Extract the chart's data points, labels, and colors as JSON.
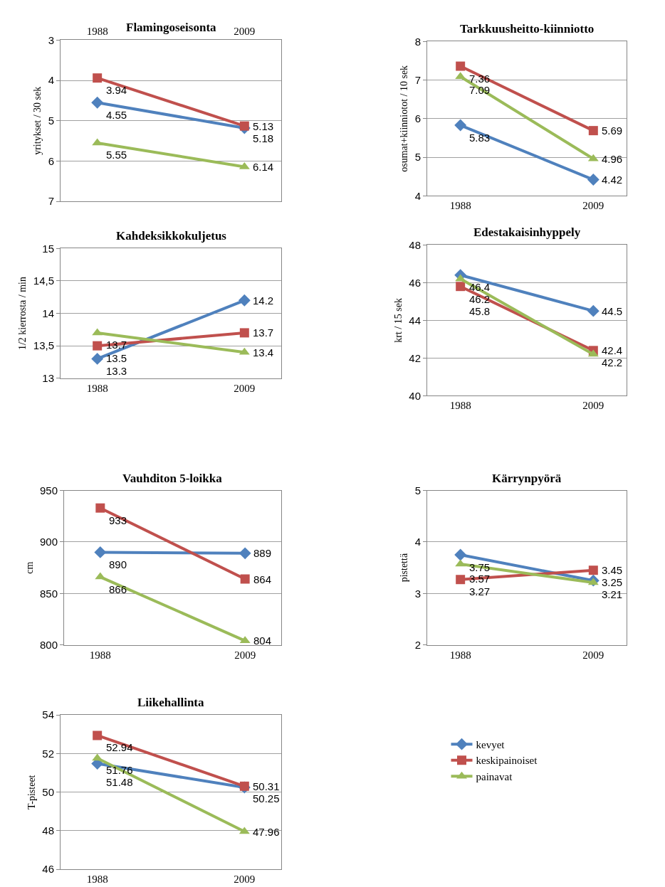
{
  "chart_data": [
    {
      "type": "line",
      "title": "Flamingoseisonta",
      "ylabel": "yritykset / 30 sek",
      "categories": [
        "1988",
        "2009"
      ],
      "ylim": [
        7,
        3
      ],
      "yticks": [
        3,
        4,
        5,
        6,
        7
      ],
      "grid": "y",
      "data_labels": true,
      "series": [
        {
          "color": "#4f81bd",
          "marker": "diamond",
          "values": [
            4.55,
            5.18
          ]
        },
        {
          "color": "#c0504d",
          "marker": "square",
          "values": [
            3.94,
            5.13
          ]
        },
        {
          "color": "#9bbb59",
          "marker": "triangle",
          "values": [
            5.55,
            6.14
          ]
        }
      ]
    },
    {
      "type": "line",
      "title": "Tarkkuusheitto-kiinniotto",
      "ylabel": "osumat+kiinniotot / 10 sek",
      "categories": [
        "1988",
        "2009"
      ],
      "ylim": [
        4,
        8
      ],
      "yticks": [
        4,
        5,
        6,
        7,
        8
      ],
      "grid": "y",
      "data_labels": true,
      "series": [
        {
          "color": "#4f81bd",
          "marker": "diamond",
          "values": [
            5.83,
            4.42
          ]
        },
        {
          "color": "#c0504d",
          "marker": "square",
          "values": [
            7.36,
            5.69
          ]
        },
        {
          "color": "#9bbb59",
          "marker": "triangle",
          "values": [
            7.09,
            4.96
          ]
        }
      ]
    },
    {
      "type": "line",
      "title": "Kahdeksikkokuljetus",
      "ylabel": "1/2 kierrosta / min",
      "categories": [
        "1988",
        "2009"
      ],
      "ylim": [
        13,
        15
      ],
      "yticks": [
        13,
        {
          "value": 13.5,
          "label": "13,5"
        },
        14,
        {
          "value": 14.5,
          "label": "14,5"
        },
        15
      ],
      "grid": "y",
      "data_labels": true,
      "series": [
        {
          "color": "#4f81bd",
          "marker": "diamond",
          "values": [
            13.3,
            14.2
          ]
        },
        {
          "color": "#c0504d",
          "marker": "square",
          "values": [
            13.5,
            13.7
          ]
        },
        {
          "color": "#9bbb59",
          "marker": "triangle",
          "values": [
            13.7,
            13.4
          ]
        }
      ]
    },
    {
      "type": "line",
      "title": "Edestakaisinhyppely",
      "ylabel": "krt / 15 sek",
      "categories": [
        "1988",
        "2009"
      ],
      "ylim": [
        40,
        48
      ],
      "yticks": [
        40,
        42,
        44,
        46,
        48
      ],
      "grid": "y",
      "data_labels": true,
      "series": [
        {
          "color": "#4f81bd",
          "marker": "diamond",
          "values": [
            46.4,
            44.5
          ]
        },
        {
          "color": "#c0504d",
          "marker": "square",
          "values": [
            45.8,
            42.4
          ]
        },
        {
          "color": "#9bbb59",
          "marker": "triangle",
          "values": [
            46.2,
            42.2
          ]
        }
      ]
    },
    {
      "type": "line",
      "title": "Vauhditon 5-loikka",
      "ylabel": "cm",
      "categories": [
        "1988",
        "2009"
      ],
      "ylim": [
        800,
        950
      ],
      "yticks": [
        800,
        850,
        900,
        950
      ],
      "grid": "y",
      "data_labels": true,
      "series": [
        {
          "color": "#4f81bd",
          "marker": "diamond",
          "values": [
            890,
            889
          ]
        },
        {
          "color": "#c0504d",
          "marker": "square",
          "values": [
            933,
            864
          ]
        },
        {
          "color": "#9bbb59",
          "marker": "triangle",
          "values": [
            866,
            804
          ]
        }
      ]
    },
    {
      "type": "line",
      "title": "Kärrynpyörä",
      "ylabel": "pistettä",
      "categories": [
        "1988",
        "2009"
      ],
      "ylim": [
        2,
        5
      ],
      "yticks": [
        2,
        3,
        4,
        5
      ],
      "grid": "y",
      "data_labels": true,
      "series": [
        {
          "color": "#4f81bd",
          "marker": "diamond",
          "values": [
            3.75,
            3.25
          ]
        },
        {
          "color": "#c0504d",
          "marker": "square",
          "values": [
            3.27,
            3.45
          ]
        },
        {
          "color": "#9bbb59",
          "marker": "triangle",
          "values": [
            3.57,
            3.21
          ]
        }
      ]
    },
    {
      "type": "line",
      "title": "Liikehallinta",
      "ylabel": "T-pisteet",
      "categories": [
        "1988",
        "2009"
      ],
      "ylim": [
        46,
        54
      ],
      "yticks": [
        46,
        48,
        50,
        52,
        54
      ],
      "grid": "y",
      "data_labels": true,
      "legend": "right",
      "series": [
        {
          "name": "kevyet",
          "color": "#4f81bd",
          "marker": "diamond",
          "values": [
            51.48,
            50.25
          ]
        },
        {
          "name": "keskipainoiset",
          "color": "#c0504d",
          "marker": "square",
          "values": [
            52.94,
            50.31
          ]
        },
        {
          "name": "painavat",
          "color": "#9bbb59",
          "marker": "triangle",
          "values": [
            51.76,
            47.96
          ]
        }
      ]
    }
  ]
}
